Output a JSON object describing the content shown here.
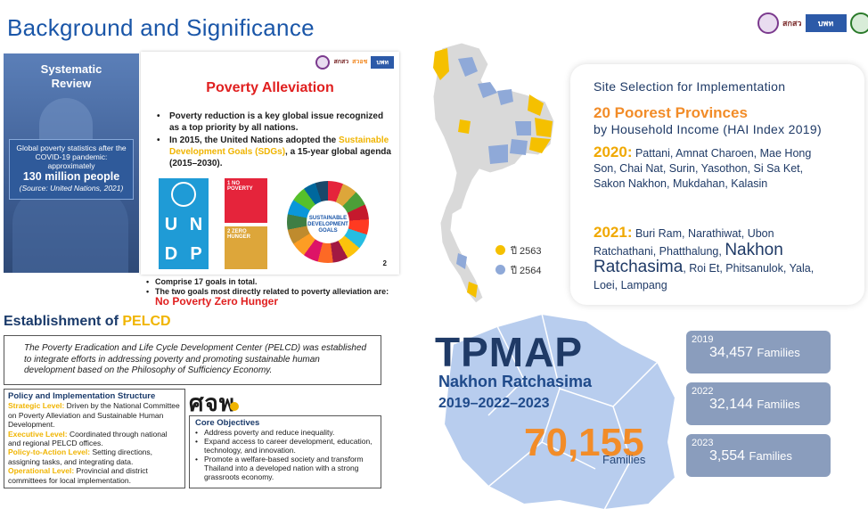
{
  "title": "Background and Significance",
  "logos": {
    "mini_text": "สกสว",
    "partner": "สวอช",
    "box": "บพท"
  },
  "systematic_review": {
    "title_line1": "Systematic",
    "title_line2": "Review",
    "stat_text": "Global poverty statistics after the COVID-19 pandemic: approximately",
    "stat_big": "130 million people",
    "source": "(Source: United Nations, 2021)"
  },
  "poverty_alleviation": {
    "title": "Poverty Alleviation",
    "bullet1": "Poverty reduction is a key global issue recognized as a top priority by all nations.",
    "bullet2_pre": "In 2015, the United Nations adopted the ",
    "bullet2_hl": "Sustainable Development Goals (SDGs)",
    "bullet2_post": ", a 15-year global agenda (2015–2030).",
    "un_letters": [
      "U",
      "N",
      "D",
      "P"
    ],
    "sdg1": "1 NO POVERTY",
    "sdg2": "2 ZERO HUNGER",
    "wheel": "SUSTAINABLE DEVELOPMENT GOALS",
    "page_number": "2",
    "foot1": "Comprise 17 goals in total.",
    "foot2": "The two goals most directly related to poverty alleviation are: ",
    "foot2_red": "No Poverty Zero Hunger"
  },
  "establishment": {
    "title_pre": "Establishment of ",
    "title_hl": "PELCD",
    "description": "The Poverty Eradication and Life Cycle Development Center (PELCD) was established to integrate efforts in addressing poverty and promoting sustainable human development based on the Philosophy of Sufficiency Economy."
  },
  "policy": {
    "heading": "Policy and Implementation Structure",
    "l1": "Strategic Level:",
    "t1": " Driven by the National Committee on Poverty Alleviation and Sustainable Human Development.",
    "l2": "Executive Level:",
    "t2": " Coordinated through national and regional PELCD offices.",
    "l3": "Policy-to-Action Level:",
    "t3": " Setting directions, assigning tasks, and integrating data.",
    "l4": "Operational Level:",
    "t4": " Provincial and district committees for local implementation."
  },
  "sjp_logo": "ศจพ",
  "core": {
    "heading": "Core Objectives",
    "items": [
      "Address poverty and reduce inequality.",
      "Expand access to career development, education, technology, and innovation.",
      "Promote a welfare-based society and transform Thailand into a developed nation with a strong grassroots economy."
    ]
  },
  "site": {
    "title": "Site Selection for Implementation",
    "poorest": "20 Poorest Provinces",
    "hai": "by Household Income (HAI Index 2019)",
    "y2020": "2020:",
    "list2020": " Pattani, Amnat Charoen, Mae Hong Son, Chai Nat, Surin, Yasothon, Si Sa Ket, Sakon Nakhon, Mukdahan, Kalasin",
    "y2021": "2021:",
    "list2021_a": " Buri Ram, Narathiwat, Ubon Ratchathani, Phatthalung, ",
    "list2021_big": "Nakhon Ratchasima",
    "list2021_b": ", Roi Et, Phitsanulok, Yala, Loei, Lampang"
  },
  "legend": {
    "a": "ปี 2563",
    "b": "ปี 2564"
  },
  "colors": {
    "yellow": "#f5c000",
    "blue": "#8fa9d8"
  },
  "tpmap": {
    "title": "TPMAP",
    "province": "Nakhon Ratchasima",
    "years": "2019–2022–2023",
    "total": "70,155",
    "total_unit": "Families"
  },
  "stats": [
    {
      "year": "2019",
      "value": "34,457",
      "unit": "Families"
    },
    {
      "year": "2022",
      "value": "32,144",
      "unit": "Families"
    },
    {
      "year": "2023",
      "value": "3,554",
      "unit": "Families"
    }
  ]
}
